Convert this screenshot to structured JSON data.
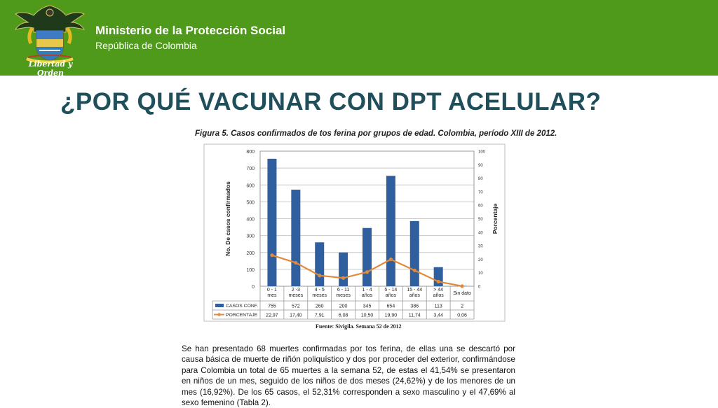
{
  "header": {
    "ministry": "Ministerio de la Protección Social",
    "republic": "República de Colombia",
    "motto": "Libertad y Orden",
    "background_color": "#4f9a1a"
  },
  "slide_title": "¿POR QUÉ VACUNAR CON DPT ACELULAR?",
  "chart_data": {
    "type": "bar",
    "title": "Figura 5. Casos confirmados de tos ferina por grupos de edad. Colombia, período XIII de 2012.",
    "categories": [
      "0 - 1 mes",
      "2 -3 meses",
      "4 - 5 meses",
      "6 - 11 meses",
      "1 - 4 años",
      "5 - 14 años",
      "15 - 44 años",
      "> 44 años",
      "Sin dato"
    ],
    "series": [
      {
        "name": "CASOS CONF.",
        "type": "bar",
        "axis": "left",
        "color": "#2f5f9e",
        "values": [
          755,
          572,
          260,
          200,
          345,
          654,
          386,
          113,
          2
        ]
      },
      {
        "name": "PORCENTAJE",
        "type": "line",
        "axis": "right",
        "color": "#e08a3c",
        "values": [
          22.97,
          17.4,
          7.91,
          6.08,
          10.5,
          19.9,
          11.74,
          3.44,
          0.06
        ]
      }
    ],
    "ylabel": "No. De casos confirmados",
    "y2label": "Porcentaje",
    "ylim": [
      0,
      800
    ],
    "y2lim": [
      0,
      100
    ],
    "yticks": [
      0,
      100,
      200,
      300,
      400,
      500,
      600,
      700,
      800
    ],
    "y2ticks": [
      0,
      10,
      20,
      30,
      40,
      50,
      60,
      70,
      80,
      90,
      100
    ],
    "table_values": {
      "CASOS CONF.": [
        "755",
        "572",
        "260",
        "200",
        "345",
        "654",
        "386",
        "113",
        "2"
      ],
      "PORCENTAJE": [
        "22,97",
        "17,40",
        "7,91",
        "6,08",
        "10,50",
        "19,90",
        "11,74",
        "3,44",
        "0,06"
      ]
    },
    "source": "Fuente: Sivigila. Semana 52 de 2012",
    "grid": true,
    "legend": "bottom-left table"
  },
  "body_text": "Se han presentado 68 muertes confirmadas por tos ferina, de ellas una se descartó por causa básica de muerte de riñón poliquístico y dos por proceder del exterior, confirmándose para Colombia un total de 65 muertes a la semana 52, de estas el 41,54% se presentaron en niños de un mes, seguido de los niños de dos meses (24,62%) y de los menores de un mes (16,92%). De los 65 casos, el 52,31% corresponden a sexo masculino y el 47,69% al sexo femenino (Tabla 2)."
}
